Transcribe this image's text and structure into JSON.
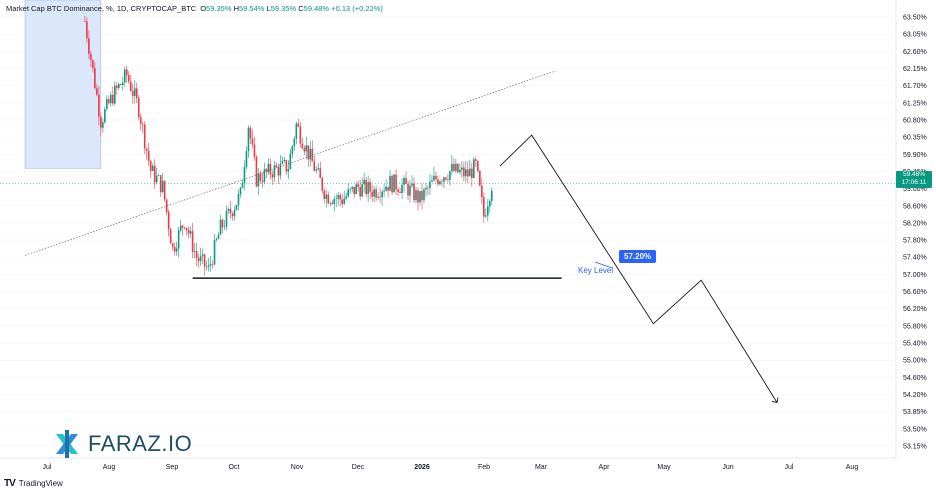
{
  "header": {
    "symbol": "Market Cap BTC Dominance, %, 1D, CRYPTOCAP_BTC",
    "open_label": "O",
    "open": "59.35%",
    "high_label": "H",
    "high": "59.54%",
    "low_label": "L",
    "low": "59.35%",
    "close_label": "C",
    "close": "59.48%",
    "change": "+0.13 (+0.22%)"
  },
  "price_tag": {
    "value": "59.48%",
    "countdown": "17:06:11"
  },
  "annotation": {
    "callout": "57.20%",
    "key_level": "Key Level"
  },
  "brand": {
    "name": "FARAZ.IO"
  },
  "footer": {
    "logo": "TV",
    "name": "TradingView"
  },
  "colors": {
    "up": "#089981",
    "down": "#f23645",
    "accent": "#2962ff",
    "highlight": "#dbe7fb"
  },
  "chart_data": {
    "type": "candlestick",
    "title": "Market Cap BTC Dominance, %, 1D, CRYPTOCAP_BTC",
    "x_ticks": [
      "Jul",
      "Aug",
      "Sep",
      "Oct",
      "Nov",
      "Dec",
      "2026",
      "Feb",
      "Mar",
      "Apr",
      "May",
      "Jun",
      "Jul",
      "Aug"
    ],
    "y_ticks": [
      "63.50%",
      "63.05%",
      "62.60%",
      "62.15%",
      "61.70%",
      "61.25%",
      "60.80%",
      "60.35%",
      "59.90%",
      "59.45%",
      "59.00%",
      "58.60%",
      "58.20%",
      "57.80%",
      "57.40%",
      "57.00%",
      "56.60%",
      "56.20%",
      "55.80%",
      "55.40%",
      "55.00%",
      "54.60%",
      "54.20%",
      "53.85%",
      "53.50%",
      "53.15%"
    ],
    "ylim": [
      52.9,
      63.7
    ],
    "last_price": 59.48,
    "key_level": 57.2,
    "close_path": [
      [
        "Jul 20",
        63.4
      ],
      [
        "Jul 28",
        61.0
      ],
      [
        "Aug 3",
        61.6
      ],
      [
        "Aug 10",
        62.1
      ],
      [
        "Aug 16",
        61.3
      ],
      [
        "Aug 22",
        59.8
      ],
      [
        "Aug 28",
        59.4
      ],
      [
        "Sep 2",
        57.9
      ],
      [
        "Sep 8",
        58.6
      ],
      [
        "Sep 14",
        57.7
      ],
      [
        "Sep 20",
        57.4
      ],
      [
        "Sep 26",
        58.4
      ],
      [
        "Oct 1",
        58.8
      ],
      [
        "Oct 6",
        59.2
      ],
      [
        "Oct 10",
        60.9
      ],
      [
        "Oct 14",
        59.6
      ],
      [
        "Oct 22",
        59.8
      ],
      [
        "Oct 30",
        59.9
      ],
      [
        "Nov 3",
        60.9
      ],
      [
        "Nov 10",
        60.1
      ],
      [
        "Nov 18",
        59.2
      ],
      [
        "Nov 26",
        59.1
      ],
      [
        "Dec 4",
        59.4
      ],
      [
        "Dec 12",
        59.3
      ],
      [
        "Dec 20",
        59.5
      ],
      [
        "Dec 28",
        59.4
      ],
      [
        "Jan 4",
        59.1
      ],
      [
        "Jan 12",
        59.6
      ],
      [
        "Jan 20",
        59.8
      ],
      [
        "Jan 28",
        59.7
      ],
      [
        "Feb 1",
        59.9
      ],
      [
        "Feb 5",
        58.7
      ],
      [
        "Feb 9",
        59.48
      ]
    ],
    "highlight_box": {
      "from": "Jun 20",
      "to": "Jul 28",
      "top": 63.7,
      "bottom": 59.85
    },
    "trendline": {
      "from": [
        "Jun 20",
        57.75
      ],
      "to": [
        "Mar 13",
        62.2
      ]
    },
    "key_level_line": {
      "from": "Sep 12",
      "to": "Mar 16",
      "value": 57.2
    },
    "projection": [
      [
        "Feb 13",
        59.9
      ],
      [
        "Mar 1",
        60.65
      ],
      [
        "May 1",
        56.1
      ],
      [
        "May 25",
        57.15
      ],
      [
        "Jul 2",
        54.2
      ]
    ]
  }
}
